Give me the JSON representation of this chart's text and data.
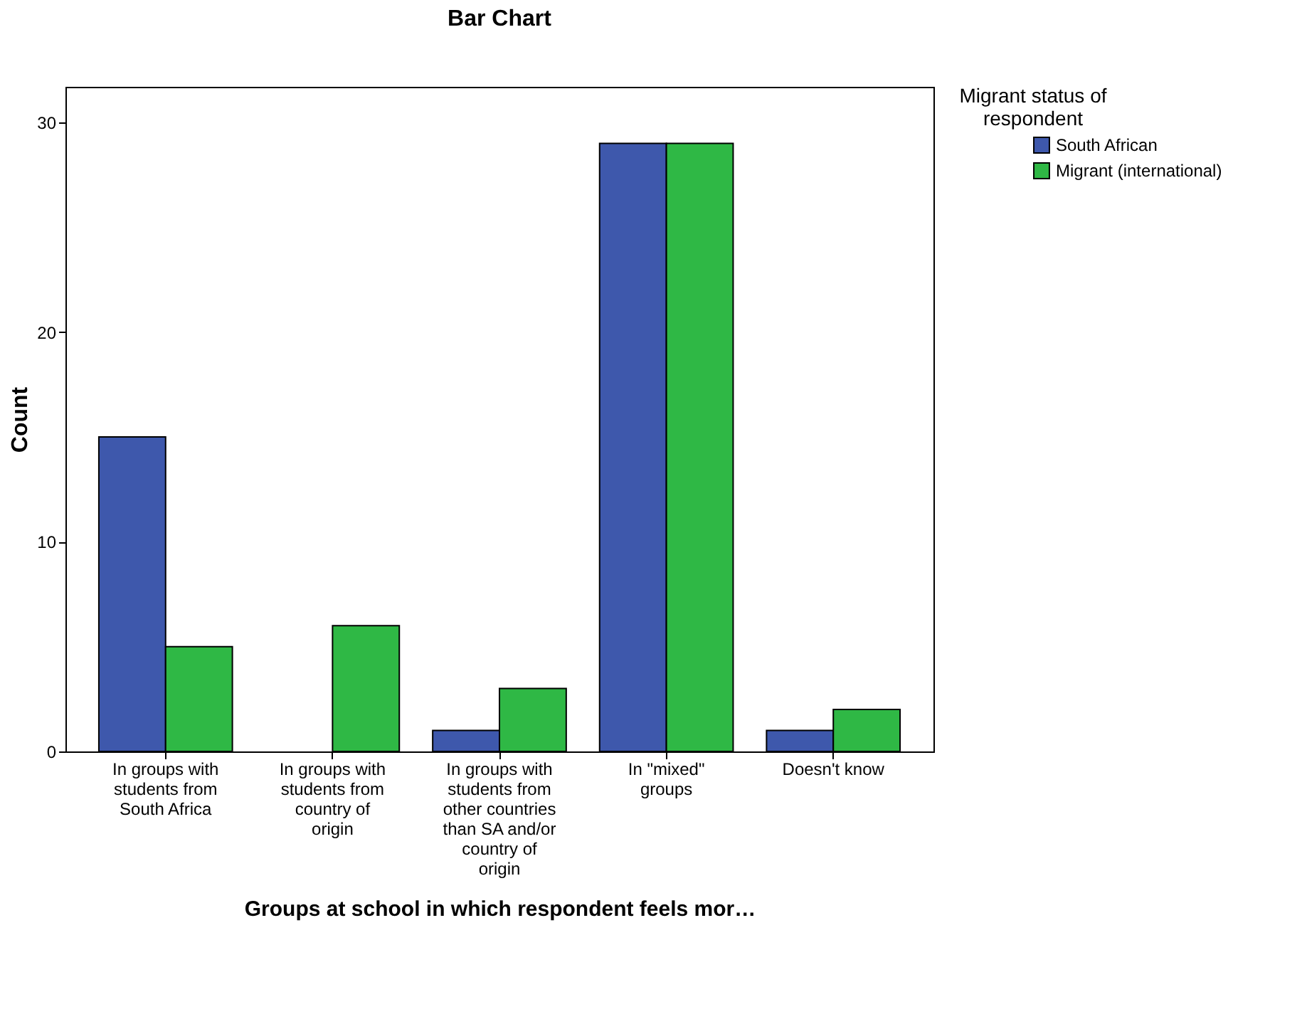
{
  "chart_data": {
    "type": "bar",
    "title": "Bar Chart",
    "xlabel": "Groups at school in which respondent feels mor…",
    "ylabel": "Count",
    "legend_title": "Migrant status of respondent",
    "legend": "right",
    "categories": [
      "In groups with students from South Africa",
      "In groups with students from country of origin",
      "In groups with students from other countries than SA and/or country of origin",
      "In \"mixed\" groups",
      "Doesn't know"
    ],
    "series": [
      {
        "name": "South African",
        "color": "#3e58ac",
        "values": [
          15,
          0,
          1,
          29,
          1
        ]
      },
      {
        "name": "Migrant (international)",
        "color": "#2fb845",
        "values": [
          5,
          6,
          3,
          29,
          2
        ]
      }
    ],
    "ylim": [
      0,
      31.7
    ],
    "yticks": [
      0,
      10,
      20,
      30
    ],
    "grid": false
  }
}
